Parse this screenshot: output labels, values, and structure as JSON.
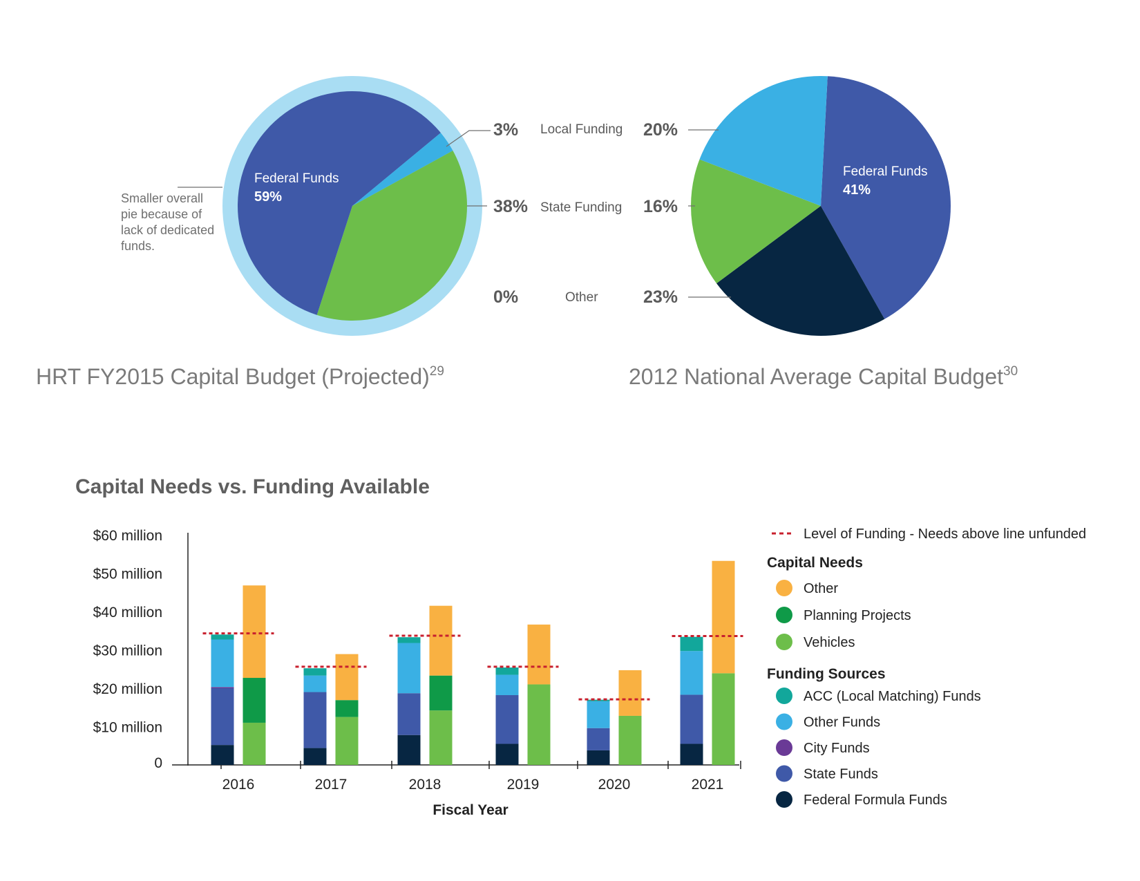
{
  "colors": {
    "federal_blue": "#3f59a8",
    "light_blue": "#3ab0e4",
    "pale_blue": "#a9ddf3",
    "green": "#6dbe4a",
    "dark_green": "#0f9a48",
    "navy": "#072642",
    "orange": "#f9b142",
    "teal": "#12a79b",
    "purple": "#6a3a96",
    "red_dashed": "#c8202e",
    "gray_text": "#6f6f6f",
    "dark_text": "#4a4a4a"
  },
  "chart_data": [
    {
      "type": "pie",
      "title": "HRT FY2015 Capital Budget (Projected)",
      "title_sup": "29",
      "labels": [
        "Federal Funds",
        "Local Funding",
        "State Funding",
        "Other"
      ],
      "values": [
        59,
        3,
        38,
        0
      ],
      "value_labels": [
        "59%",
        "3%",
        "38%",
        "0%"
      ],
      "annotation": [
        "Smaller overall",
        "pie because of",
        "lack of dedicated",
        "funds."
      ],
      "slice_colors": [
        "#3f59a8",
        "#3ab0e4",
        "#6dbe4a",
        "#072642"
      ]
    },
    {
      "type": "pie",
      "title": "2012 National Average Capital Budget",
      "title_sup": "30",
      "labels": [
        "Federal Funds",
        "Local Funding",
        "State Funding",
        "Other"
      ],
      "values": [
        41,
        20,
        16,
        23
      ],
      "value_labels": [
        "41%",
        "20%",
        "16%",
        "23%"
      ],
      "slice_colors": [
        "#3f59a8",
        "#3ab0e4",
        "#6dbe4a",
        "#072642"
      ]
    },
    {
      "type": "bar",
      "title": "Capital Needs vs. Funding Available",
      "xlabel": "Fiscal Year",
      "ylabel": "",
      "ylim": [
        0,
        60
      ],
      "y_ticks": [
        0,
        10,
        20,
        30,
        40,
        50,
        60
      ],
      "y_tick_labels": [
        "0",
        "$10 million",
        "$20 million",
        "$30 million",
        "$40 million",
        "$50 million",
        "$60 million"
      ],
      "categories": [
        "2016",
        "2017",
        "2018",
        "2019",
        "2020",
        "2021"
      ],
      "funding_level": [
        34.3,
        25.6,
        33.7,
        25.6,
        17.1,
        33.6
      ],
      "funding_level_label": "Level of Funding - Needs above line unfunded",
      "funding_sources": [
        {
          "name": "Federal Formula Funds",
          "color": "#072642",
          "values": [
            5.2,
            4.4,
            7.8,
            5.5,
            3.8,
            5.5
          ]
        },
        {
          "name": "State Funds",
          "color": "#3f59a8",
          "values": [
            14.8,
            14.6,
            10.9,
            12.7,
            5.8,
            12.8
          ]
        },
        {
          "name": "City Funds",
          "color": "#6a3a96",
          "values": [
            0.3,
            0,
            0,
            0,
            0,
            0
          ]
        },
        {
          "name": "Other Funds",
          "color": "#3ab0e4",
          "values": [
            12.4,
            4.3,
            13.1,
            5.3,
            7.0,
            11.4
          ]
        },
        {
          "name": "ACC (Local Matching) Funds",
          "color": "#12a79b",
          "values": [
            1.3,
            1.9,
            1.5,
            1.9,
            0.4,
            3.7
          ]
        }
      ],
      "capital_needs": [
        {
          "name": "Vehicles",
          "color": "#6dbe4a",
          "values": [
            11.0,
            12.5,
            14.2,
            21.0,
            12.8,
            23.9
          ]
        },
        {
          "name": "Planning Projects",
          "color": "#0f9a48",
          "values": [
            11.7,
            4.4,
            9.1,
            0,
            0,
            0
          ]
        },
        {
          "name": "Other",
          "color": "#f9b142",
          "values": [
            24.1,
            12.0,
            18.2,
            15.6,
            11.9,
            29.3
          ]
        }
      ],
      "legend": {
        "capital_needs_header": "Capital Needs",
        "capital_needs_items": [
          "Other",
          "Planning Projects",
          "Vehicles"
        ],
        "funding_sources_header": "Funding Sources",
        "funding_sources_items": [
          "ACC (Local Matching) Funds",
          "Other Funds",
          "City Funds",
          "State Funds",
          "Federal Formula Funds"
        ]
      }
    }
  ]
}
